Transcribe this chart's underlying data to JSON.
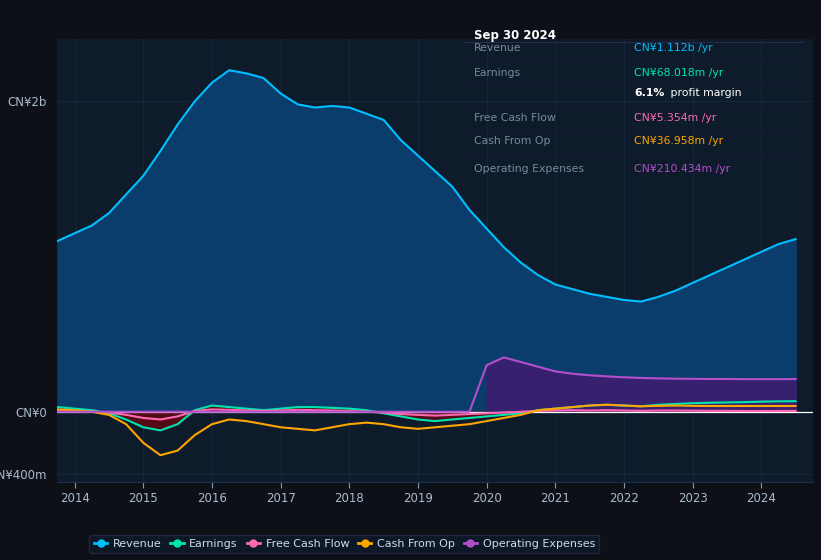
{
  "bg_color": "#0d1117",
  "plot_bg_color": "#0d1b2a",
  "grid_color": "#1e3050",
  "years": [
    2013.75,
    2014.0,
    2014.25,
    2014.5,
    2014.75,
    2015.0,
    2015.25,
    2015.5,
    2015.75,
    2016.0,
    2016.25,
    2016.5,
    2016.75,
    2017.0,
    2017.25,
    2017.5,
    2017.75,
    2018.0,
    2018.25,
    2018.5,
    2018.75,
    2019.0,
    2019.25,
    2019.5,
    2019.75,
    2020.0,
    2020.25,
    2020.5,
    2020.75,
    2021.0,
    2021.25,
    2021.5,
    2021.75,
    2022.0,
    2022.25,
    2022.5,
    2022.75,
    2023.0,
    2023.25,
    2023.5,
    2023.75,
    2024.0,
    2024.25,
    2024.5
  ],
  "revenue": [
    1100,
    1150,
    1200,
    1280,
    1400,
    1520,
    1680,
    1850,
    2000,
    2120,
    2200,
    2180,
    2150,
    2050,
    1980,
    1960,
    1970,
    1960,
    1920,
    1880,
    1750,
    1650,
    1550,
    1450,
    1300,
    1180,
    1060,
    960,
    880,
    820,
    790,
    760,
    740,
    720,
    710,
    740,
    780,
    830,
    880,
    930,
    980,
    1030,
    1080,
    1112
  ],
  "earnings": [
    30,
    20,
    10,
    -10,
    -50,
    -100,
    -120,
    -80,
    10,
    40,
    30,
    20,
    10,
    20,
    30,
    30,
    25,
    20,
    10,
    -10,
    -30,
    -50,
    -60,
    -50,
    -40,
    -30,
    -20,
    -10,
    10,
    20,
    30,
    40,
    45,
    40,
    35,
    45,
    50,
    55,
    58,
    60,
    62,
    65,
    67,
    68
  ],
  "free_cash_flow": [
    10,
    5,
    0,
    -5,
    -20,
    -40,
    -50,
    -30,
    5,
    15,
    12,
    8,
    5,
    8,
    12,
    10,
    8,
    5,
    0,
    -5,
    -15,
    -20,
    -25,
    -20,
    -15,
    -10,
    -5,
    0,
    5,
    8,
    10,
    8,
    10,
    8,
    6,
    8,
    8,
    7,
    6,
    6,
    5,
    5,
    5,
    5.354
  ],
  "cash_from_op": [
    15,
    10,
    0,
    -20,
    -80,
    -200,
    -280,
    -250,
    -150,
    -80,
    -50,
    -60,
    -80,
    -100,
    -110,
    -120,
    -100,
    -80,
    -70,
    -80,
    -100,
    -110,
    -100,
    -90,
    -80,
    -60,
    -40,
    -20,
    10,
    20,
    30,
    40,
    45,
    40,
    35,
    38,
    40,
    38,
    37,
    37,
    37,
    37,
    37,
    36.958
  ],
  "operating_expenses": [
    0,
    0,
    0,
    0,
    0,
    0,
    0,
    0,
    0,
    0,
    0,
    0,
    0,
    0,
    0,
    0,
    0,
    0,
    0,
    0,
    0,
    0,
    0,
    0,
    0,
    300,
    350,
    320,
    290,
    260,
    245,
    235,
    228,
    222,
    218,
    215,
    213,
    212,
    211,
    211,
    210,
    210,
    210,
    210.434
  ],
  "ylim": [
    -450,
    2400
  ],
  "colors": {
    "revenue": "#00bfff",
    "earnings": "#00e5b0",
    "free_cash_flow": "#ff69b4",
    "cash_from_op": "#ffa500",
    "operating_expenses": "#b44fcc"
  },
  "fill_revenue_color": "#0a3d6b",
  "fill_earnings_neg_color": "#5a0a14",
  "fill_op_exp_color": "#3a2070",
  "legend_labels": [
    "Revenue",
    "Earnings",
    "Free Cash Flow",
    "Cash From Op",
    "Operating Expenses"
  ],
  "xtick_years": [
    2014,
    2015,
    2016,
    2017,
    2018,
    2019,
    2020,
    2021,
    2022,
    2023,
    2024
  ]
}
